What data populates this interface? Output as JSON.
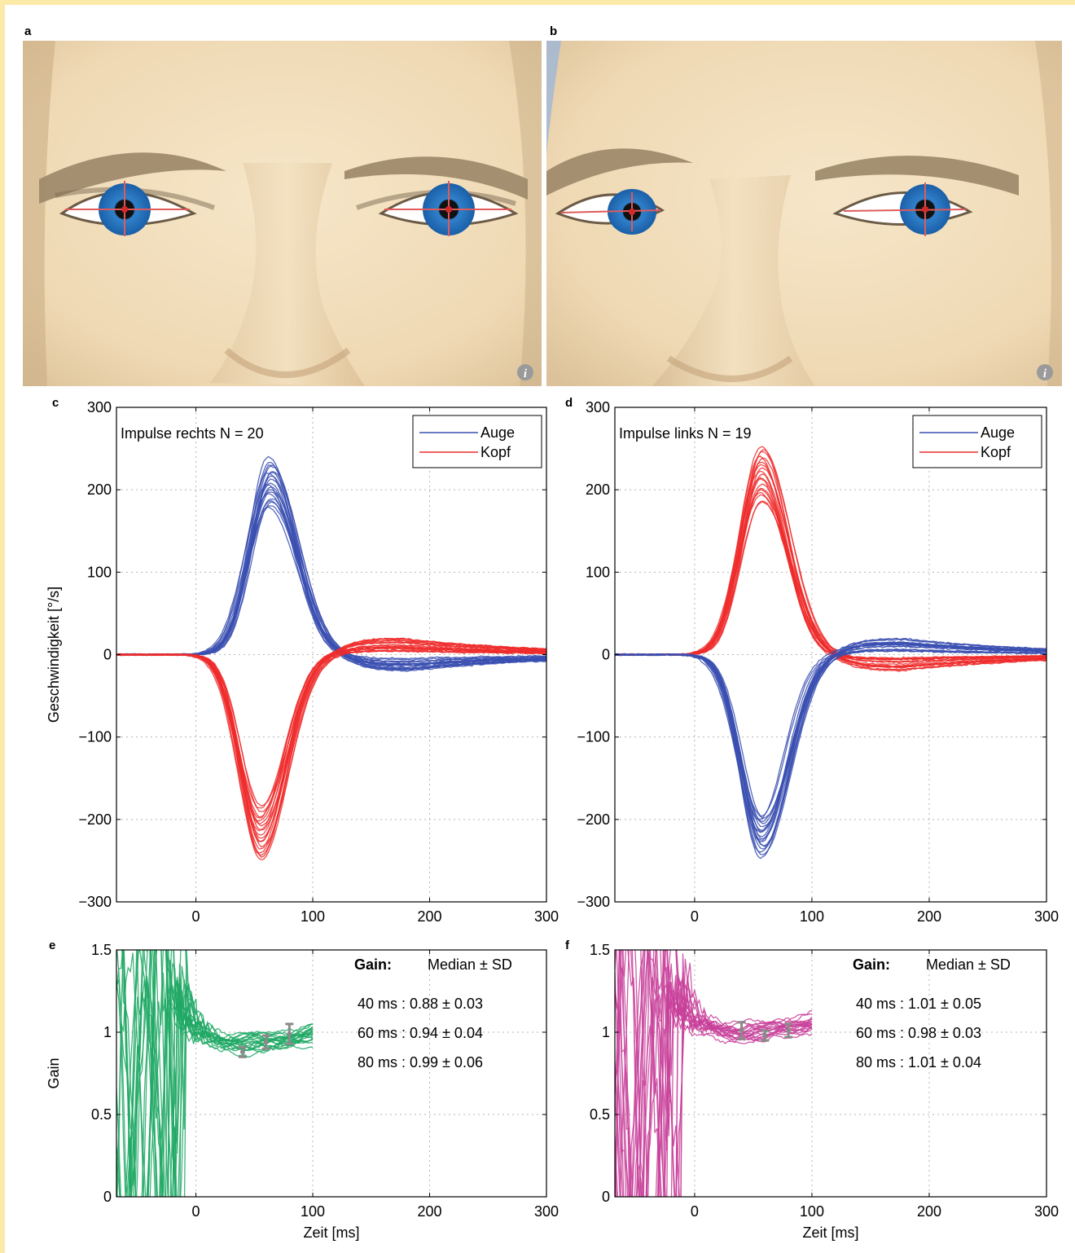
{
  "panel_labels": {
    "a": "a",
    "b": "b",
    "c": "c",
    "d": "d",
    "e": "e",
    "f": "f"
  },
  "faces": [
    {
      "panel": "a",
      "gaze": "straight",
      "info_icon": "info-icon"
    },
    {
      "panel": "b",
      "gaze": "rotated",
      "info_icon": "info-icon"
    }
  ],
  "colors": {
    "eye": "#3a4fb0",
    "head": "#ee2b2b",
    "gain_right": "#1fa864",
    "gain_left": "#c8409a",
    "errorbar": "#8a8a8a",
    "frame": "#fde9a8",
    "iris": "#3a8ed8",
    "skin": "#f2dcb8"
  },
  "chart_data": [
    {
      "panel": "c",
      "type": "line",
      "annotation": "Impulse rechts N = 20",
      "xlabel": "",
      "ylabel": "Geschwindigkeit [°/s]",
      "xlim": [
        -68,
        300
      ],
      "ylim": [
        -300,
        300
      ],
      "xticks": [
        0,
        100,
        200,
        300
      ],
      "yticks": [
        -300,
        -200,
        -100,
        0,
        100,
        200,
        300
      ],
      "ytick_labels": [
        "−300",
        "−200",
        "−100",
        "0",
        "100",
        "200",
        "300"
      ],
      "grid": true,
      "legend": {
        "placement": "top-right",
        "entries": [
          "Auge",
          "Kopf"
        ]
      },
      "n_traces": 20,
      "series": [
        {
          "name": "Auge",
          "peak_t": 63,
          "peak_range": [
            178,
            238
          ],
          "direction": 1
        },
        {
          "name": "Kopf",
          "peak_t": 55,
          "peak_range": [
            -250,
            -185
          ],
          "direction": -1
        }
      ]
    },
    {
      "panel": "d",
      "type": "line",
      "annotation": "Impulse links N = 19",
      "xlabel": "",
      "ylabel": "",
      "xlim": [
        -68,
        300
      ],
      "ylim": [
        -300,
        300
      ],
      "xticks": [
        0,
        100,
        200,
        300
      ],
      "yticks": [
        -300,
        -200,
        -100,
        0,
        100,
        200,
        300
      ],
      "ytick_labels": [
        "−300",
        "−200",
        "−100",
        "0",
        "100",
        "200",
        "300"
      ],
      "grid": true,
      "legend": {
        "placement": "top-right",
        "entries": [
          "Auge",
          "Kopf"
        ]
      },
      "n_traces": 19,
      "series": [
        {
          "name": "Kopf",
          "peak_t": 57,
          "peak_range": [
            185,
            252
          ],
          "direction": 1
        },
        {
          "name": "Auge",
          "peak_t": 57,
          "peak_range": [
            -245,
            -195
          ],
          "direction": -1
        }
      ]
    },
    {
      "panel": "e",
      "type": "line",
      "xlabel": "Zeit [ms]",
      "ylabel": "Gain",
      "xlim": [
        -68,
        300
      ],
      "ylim": [
        0,
        1.5
      ],
      "xticks": [
        0,
        100,
        200,
        300
      ],
      "yticks": [
        0,
        0.5,
        1,
        1.5
      ],
      "grid": true,
      "n_traces": 20,
      "gain_title": "Gain:",
      "gain_header": "Median ± SD",
      "gain_rows": [
        "40 ms : 0.88 ± 0.03",
        "60 ms : 0.94 ± 0.04",
        "80 ms : 0.99 ± 0.06"
      ],
      "errorbars": [
        {
          "t": 40,
          "median": 0.88,
          "sd": 0.03
        },
        {
          "t": 60,
          "median": 0.94,
          "sd": 0.04
        },
        {
          "t": 80,
          "median": 0.99,
          "sd": 0.06
        }
      ]
    },
    {
      "panel": "f",
      "type": "line",
      "xlabel": "Zeit [ms]",
      "ylabel": "",
      "xlim": [
        -68,
        300
      ],
      "ylim": [
        0,
        1.5
      ],
      "xticks": [
        0,
        100,
        200,
        300
      ],
      "yticks": [
        0,
        0.5,
        1,
        1.5
      ],
      "grid": true,
      "n_traces": 19,
      "gain_title": "Gain:",
      "gain_header": "Median ± SD",
      "gain_rows": [
        "40 ms : 1.01 ± 0.05",
        "60 ms : 0.98 ± 0.03",
        "80 ms : 1.01 ± 0.04"
      ],
      "errorbars": [
        {
          "t": 40,
          "median": 1.01,
          "sd": 0.05
        },
        {
          "t": 60,
          "median": 0.98,
          "sd": 0.03
        },
        {
          "t": 80,
          "median": 1.01,
          "sd": 0.04
        }
      ]
    }
  ]
}
